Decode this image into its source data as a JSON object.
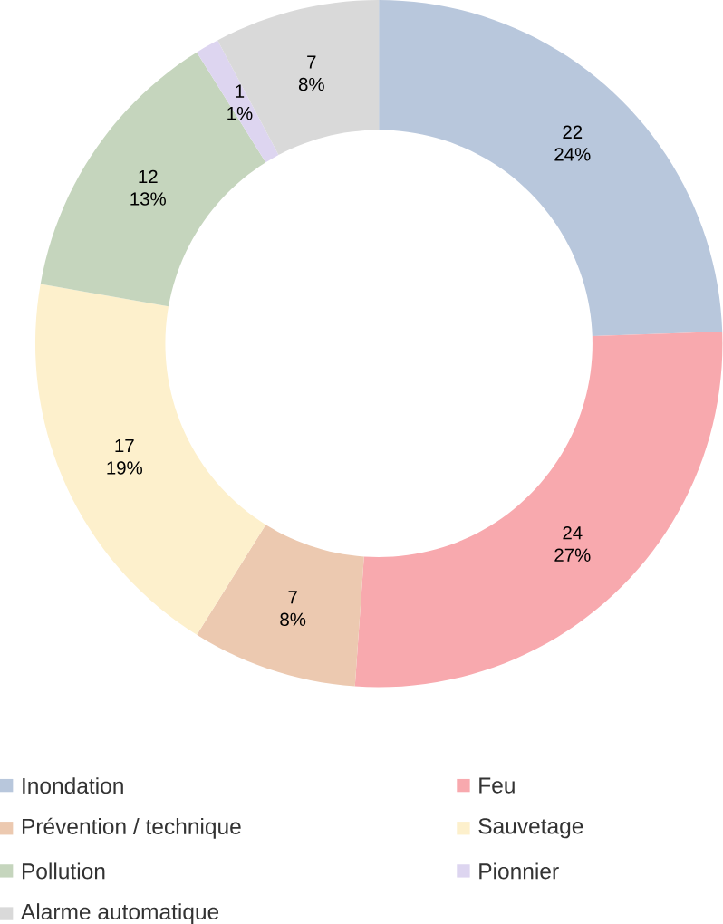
{
  "chart_data": {
    "type": "donut",
    "categories": [
      "Inondation",
      "Feu",
      "Prévention / technique",
      "Sauvetage",
      "Pollution",
      "Pionnier",
      "Alarme automatique"
    ],
    "values": [
      22,
      24,
      7,
      17,
      12,
      1,
      7
    ],
    "colors": [
      "#b8c7dc",
      "#f8a9ae",
      "#ecc9b0",
      "#fdf0cc",
      "#c5d5bd",
      "#ddd5f0",
      "#d9d9d9"
    ],
    "value_labels": [
      "22 24%",
      "24 27%",
      "7 8%",
      "17 19%",
      "12 13%",
      "1 1%",
      "7 8%"
    ],
    "legend": "bottom"
  }
}
